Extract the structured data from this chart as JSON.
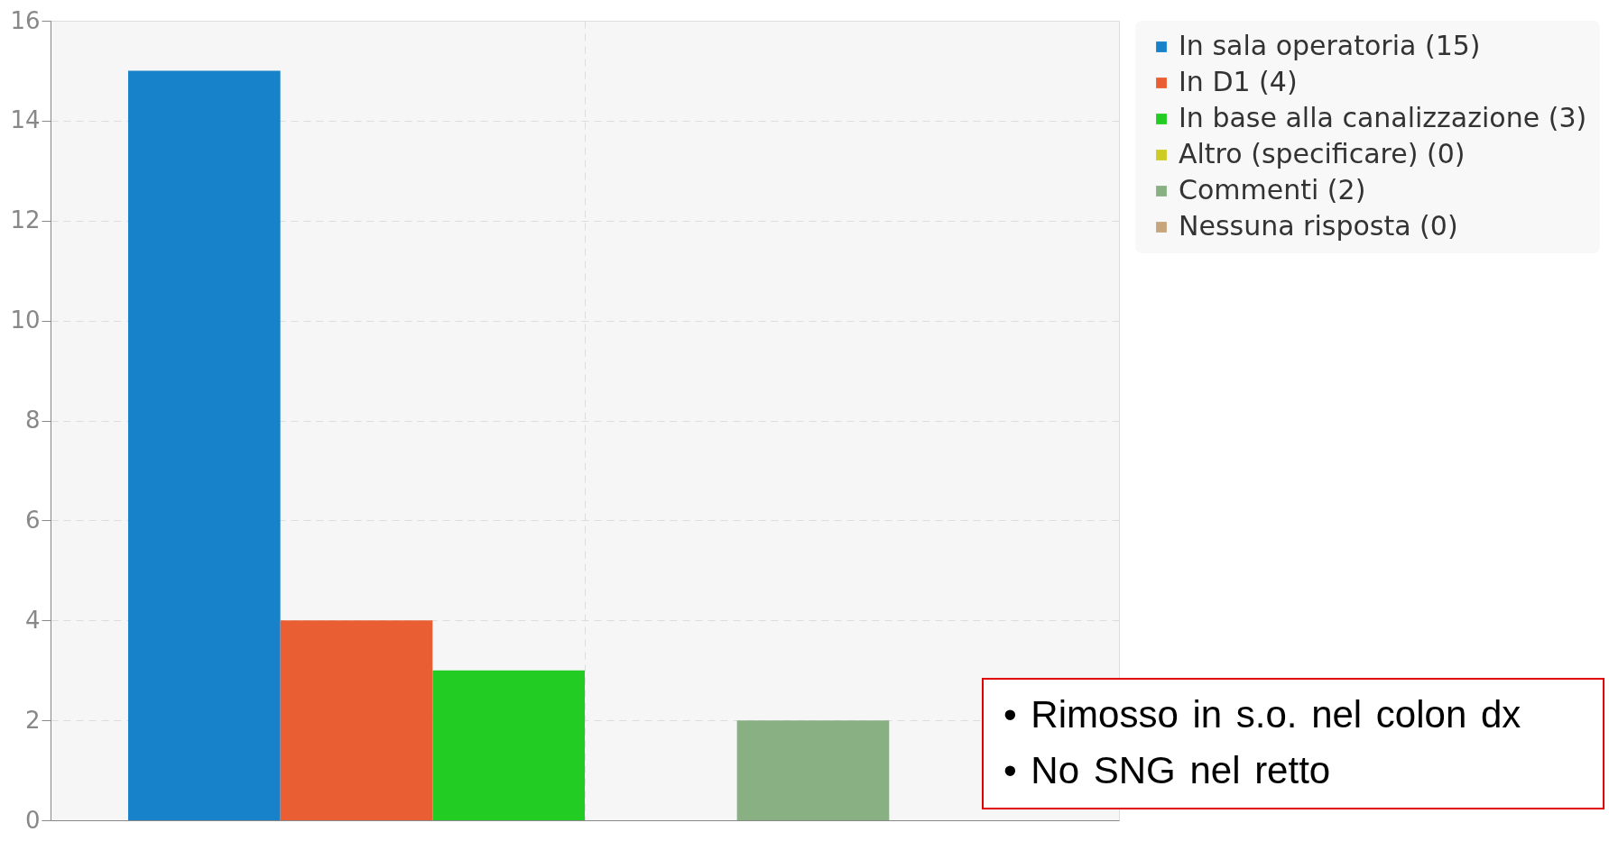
{
  "chart_data": {
    "type": "bar",
    "categories": [
      null
    ],
    "series": [
      {
        "name": "In sala operatoria (15)",
        "color": "#1782c9",
        "values": [
          15
        ]
      },
      {
        "name": "In D1 (4)",
        "color": "#e95f33",
        "values": [
          4
        ]
      },
      {
        "name": "In base alla canalizzazione (3)",
        "color": "#22cc22",
        "values": [
          3
        ]
      },
      {
        "name": "Altro (specificare) (0)",
        "color": "#cccc22",
        "values": [
          0
        ]
      },
      {
        "name": "Commenti (2)",
        "color": "#88b083",
        "values": [
          2
        ]
      },
      {
        "name": "Nessuna risposta (0)",
        "color": "#c8a67d",
        "values": [
          0
        ]
      }
    ],
    "ylim": [
      0,
      16
    ],
    "yticks": [
      0,
      2,
      4,
      6,
      8,
      10,
      12,
      14,
      16
    ],
    "grid": true,
    "legend": "top right",
    "tick_labels": "y",
    "annotations": [
      "• Rimosso in s.o. nel colon dx",
      "• No SNG nel retto"
    ]
  }
}
